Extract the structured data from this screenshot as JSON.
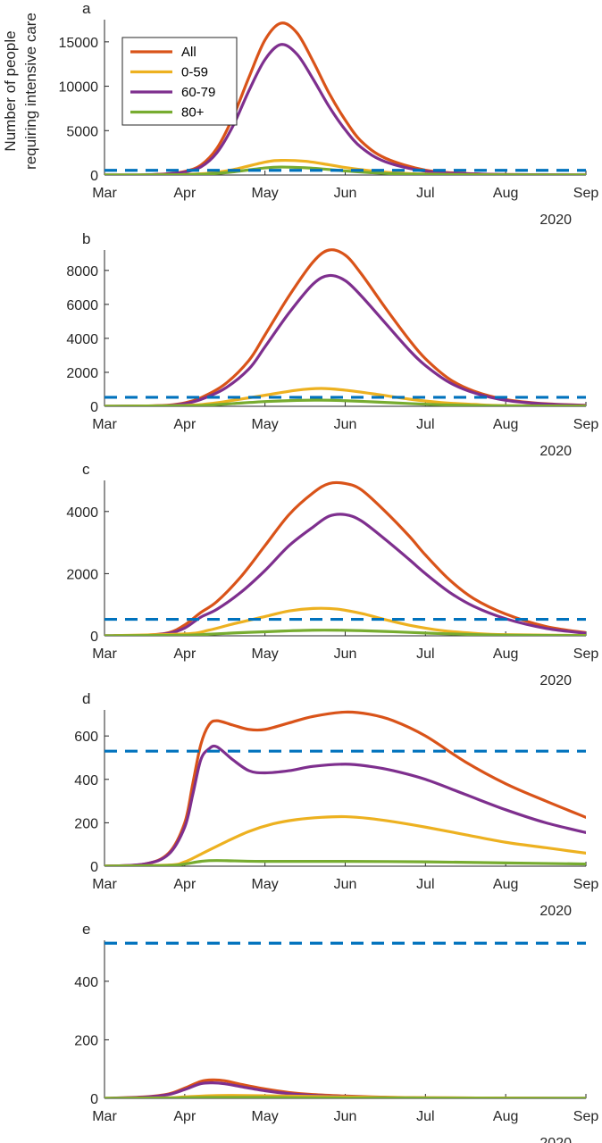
{
  "figure": {
    "ylabel_lines": [
      "Number of people",
      "requiring intensive care"
    ]
  },
  "colors": {
    "All": "#d95319",
    "0-59": "#edb120",
    "60-79": "#7e2f8e",
    "80+": "#77ac30",
    "capacity": "#0072bd"
  },
  "chart_data": [
    {
      "type": "line",
      "panel_label": "a",
      "x_unit": "month",
      "ylim": [
        0,
        17500
      ],
      "yticks": [
        0,
        5000,
        10000,
        15000
      ],
      "xticks": [
        "Mar",
        "Apr",
        "May",
        "Jun",
        "Jul",
        "Aug",
        "Sep"
      ],
      "x_year_label": "2020",
      "capacity": 530,
      "legend": {
        "position": "top-left",
        "entries": [
          "All",
          "0-59",
          "60-79",
          "80+"
        ]
      },
      "series": [
        {
          "name": "All",
          "x": [
            0,
            0.5,
            0.8,
            1.0,
            1.2,
            1.4,
            1.6,
            1.8,
            2.0,
            2.2,
            2.4,
            2.6,
            2.8,
            3.0,
            3.2,
            3.5,
            4.0,
            4.5,
            5.0,
            6.0
          ],
          "y": [
            0,
            20,
            150,
            400,
            1100,
            3000,
            6500,
            11000,
            15200,
            17100,
            16000,
            12800,
            9200,
            6200,
            3800,
            1900,
            550,
            180,
            60,
            10
          ]
        },
        {
          "name": "60-79",
          "x": [
            0,
            0.5,
            0.8,
            1.0,
            1.2,
            1.4,
            1.6,
            1.8,
            2.0,
            2.2,
            2.4,
            2.6,
            2.8,
            3.0,
            3.2,
            3.5,
            4.0,
            4.5,
            5.0,
            6.0
          ],
          "y": [
            0,
            16,
            120,
            330,
            900,
            2500,
            5500,
            9500,
            13000,
            14700,
            13600,
            10800,
            7700,
            5100,
            3100,
            1500,
            430,
            140,
            45,
            8
          ]
        },
        {
          "name": "0-59",
          "x": [
            0,
            0.8,
            1.0,
            1.3,
            1.6,
            2.0,
            2.2,
            2.5,
            2.8,
            3.0,
            3.3,
            3.6,
            4.0,
            4.5,
            5.0,
            6.0
          ],
          "y": [
            0,
            20,
            60,
            200,
            600,
            1450,
            1650,
            1550,
            1150,
            850,
            500,
            260,
            110,
            45,
            15,
            3
          ]
        },
        {
          "name": "80+",
          "x": [
            0,
            0.8,
            1.0,
            1.3,
            1.6,
            2.0,
            2.2,
            2.5,
            2.8,
            3.0,
            3.3,
            3.6,
            4.0,
            4.5,
            5.0,
            6.0
          ],
          "y": [
            0,
            10,
            30,
            120,
            350,
            800,
            900,
            820,
            620,
            460,
            280,
            140,
            60,
            25,
            10,
            2
          ]
        }
      ]
    },
    {
      "type": "line",
      "panel_label": "b",
      "x_unit": "month",
      "ylim": [
        0,
        9200
      ],
      "yticks": [
        0,
        2000,
        4000,
        6000,
        8000
      ],
      "xticks": [
        "Mar",
        "Apr",
        "May",
        "Jun",
        "Jul",
        "Aug",
        "Sep"
      ],
      "x_year_label": "2020",
      "capacity": 530,
      "series": [
        {
          "name": "All",
          "x": [
            0,
            0.5,
            0.8,
            1.0,
            1.2,
            1.5,
            1.8,
            2.0,
            2.3,
            2.6,
            2.8,
            3.0,
            3.2,
            3.5,
            3.8,
            4.0,
            4.3,
            4.6,
            5.0,
            5.5,
            6.0
          ],
          "y": [
            0,
            20,
            70,
            200,
            500,
            1300,
            2700,
            4200,
            6500,
            8500,
            9200,
            8900,
            7800,
            5800,
            3900,
            2800,
            1600,
            900,
            400,
            150,
            60
          ]
        },
        {
          "name": "60-79",
          "x": [
            0,
            0.5,
            0.8,
            1.0,
            1.2,
            1.5,
            1.8,
            2.0,
            2.3,
            2.6,
            2.8,
            3.0,
            3.2,
            3.5,
            3.8,
            4.0,
            4.3,
            4.6,
            5.0,
            5.5,
            6.0
          ],
          "y": [
            0,
            16,
            55,
            160,
            400,
            1050,
            2200,
            3500,
            5500,
            7200,
            7700,
            7400,
            6500,
            4900,
            3300,
            2400,
            1400,
            800,
            350,
            130,
            50
          ]
        },
        {
          "name": "0-59",
          "x": [
            0,
            1.0,
            1.3,
            1.6,
            2.0,
            2.4,
            2.7,
            3.0,
            3.4,
            3.8,
            4.2,
            4.6,
            5.0,
            6.0
          ],
          "y": [
            0,
            50,
            150,
            350,
            650,
            950,
            1050,
            950,
            700,
            420,
            220,
            110,
            40,
            10
          ]
        },
        {
          "name": "80+",
          "x": [
            0,
            1.0,
            1.3,
            1.6,
            2.0,
            2.4,
            2.7,
            3.0,
            3.4,
            3.8,
            4.2,
            4.6,
            5.0,
            6.0
          ],
          "y": [
            0,
            25,
            70,
            160,
            280,
            350,
            360,
            330,
            250,
            160,
            90,
            45,
            20,
            5
          ]
        }
      ]
    },
    {
      "type": "line",
      "panel_label": "c",
      "x_unit": "month",
      "ylim": [
        0,
        5000
      ],
      "yticks": [
        0,
        2000,
        4000
      ],
      "xticks": [
        "Mar",
        "Apr",
        "May",
        "Jun",
        "Jul",
        "Aug",
        "Sep"
      ],
      "x_year_label": "2020",
      "capacity": 530,
      "series": [
        {
          "name": "All",
          "x": [
            0,
            0.5,
            0.8,
            1.0,
            1.2,
            1.4,
            1.7,
            2.0,
            2.3,
            2.6,
            2.8,
            3.0,
            3.2,
            3.5,
            3.8,
            4.0,
            4.3,
            4.6,
            5.0,
            5.5,
            6.0
          ],
          "y": [
            0,
            20,
            100,
            350,
            750,
            1100,
            1900,
            2900,
            3900,
            4600,
            4900,
            4900,
            4700,
            4000,
            3200,
            2600,
            1800,
            1200,
            700,
            300,
            100
          ]
        },
        {
          "name": "60-79",
          "x": [
            0,
            0.5,
            0.8,
            1.0,
            1.2,
            1.4,
            1.7,
            2.0,
            2.3,
            2.6,
            2.8,
            3.0,
            3.2,
            3.5,
            3.8,
            4.0,
            4.3,
            4.6,
            5.0,
            5.5,
            6.0
          ],
          "y": [
            0,
            15,
            80,
            250,
            600,
            850,
            1400,
            2100,
            2900,
            3500,
            3850,
            3900,
            3700,
            3100,
            2450,
            2000,
            1400,
            950,
            550,
            240,
            80
          ]
        },
        {
          "name": "0-59",
          "x": [
            0,
            1.0,
            1.3,
            1.6,
            2.0,
            2.3,
            2.6,
            2.9,
            3.2,
            3.5,
            3.8,
            4.2,
            4.6,
            5.0,
            6.0
          ],
          "y": [
            0,
            60,
            180,
            380,
            620,
            800,
            880,
            860,
            720,
            520,
            340,
            170,
            80,
            35,
            10
          ]
        },
        {
          "name": "80+",
          "x": [
            0,
            1.0,
            1.3,
            1.6,
            2.0,
            2.3,
            2.6,
            2.9,
            3.2,
            3.5,
            3.8,
            4.2,
            4.6,
            5.0,
            6.0
          ],
          "y": [
            0,
            20,
            50,
            90,
            130,
            160,
            180,
            180,
            165,
            140,
            110,
            70,
            40,
            20,
            5
          ]
        }
      ]
    },
    {
      "type": "line",
      "panel_label": "d",
      "x_unit": "month",
      "ylim": [
        0,
        720
      ],
      "yticks": [
        0,
        200,
        400,
        600
      ],
      "xticks": [
        "Mar",
        "Apr",
        "May",
        "Jun",
        "Jul",
        "Aug",
        "Sep"
      ],
      "x_year_label": "2020",
      "capacity": 530,
      "series": [
        {
          "name": "All",
          "x": [
            0,
            0.5,
            0.8,
            1.0,
            1.1,
            1.2,
            1.3,
            1.4,
            1.6,
            1.8,
            2.0,
            2.3,
            2.6,
            3.0,
            3.3,
            3.6,
            4.0,
            4.5,
            5.0,
            5.5,
            6.0
          ],
          "y": [
            0,
            10,
            60,
            200,
            380,
            560,
            650,
            670,
            650,
            630,
            630,
            660,
            690,
            710,
            700,
            670,
            600,
            480,
            380,
            300,
            225
          ]
        },
        {
          "name": "60-79",
          "x": [
            0,
            0.5,
            0.8,
            1.0,
            1.1,
            1.2,
            1.3,
            1.4,
            1.6,
            1.8,
            2.0,
            2.3,
            2.6,
            3.0,
            3.3,
            3.6,
            4.0,
            4.5,
            5.0,
            5.5,
            6.0
          ],
          "y": [
            0,
            10,
            55,
            180,
            330,
            490,
            540,
            550,
            490,
            440,
            430,
            440,
            460,
            470,
            460,
            440,
            400,
            330,
            260,
            200,
            155
          ]
        },
        {
          "name": "0-59",
          "x": [
            0,
            0.8,
            1.0,
            1.2,
            1.5,
            1.8,
            2.1,
            2.4,
            2.7,
            3.0,
            3.3,
            3.6,
            4.0,
            4.5,
            5.0,
            5.5,
            6.0
          ],
          "y": [
            0,
            5,
            20,
            55,
            110,
            160,
            195,
            215,
            225,
            228,
            220,
            205,
            180,
            145,
            110,
            85,
            60
          ]
        },
        {
          "name": "80+",
          "x": [
            0,
            0.8,
            1.0,
            1.2,
            1.4,
            2.0,
            3.0,
            4.0,
            5.0,
            6.0
          ],
          "y": [
            0,
            3,
            10,
            22,
            26,
            22,
            22,
            20,
            15,
            10
          ]
        }
      ]
    },
    {
      "type": "line",
      "panel_label": "e",
      "x_unit": "month",
      "ylim": [
        0,
        540
      ],
      "yticks": [
        0,
        200,
        400
      ],
      "xticks": [
        "Mar",
        "Apr",
        "May",
        "Jun",
        "Jul",
        "Aug",
        "Sep"
      ],
      "x_year_label": "2020",
      "capacity": 530,
      "series": [
        {
          "name": "All",
          "x": [
            0,
            0.5,
            0.8,
            1.0,
            1.2,
            1.35,
            1.5,
            1.7,
            2.0,
            2.3,
            2.6,
            3.0,
            3.5,
            4.0,
            5.0,
            6.0
          ],
          "y": [
            0,
            5,
            15,
            35,
            58,
            63,
            60,
            48,
            32,
            20,
            13,
            8,
            4,
            2,
            1,
            0
          ]
        },
        {
          "name": "60-79",
          "x": [
            0,
            0.5,
            0.8,
            1.0,
            1.2,
            1.35,
            1.5,
            1.7,
            2.0,
            2.3,
            2.6,
            3.0,
            3.5,
            4.0,
            5.0,
            6.0
          ],
          "y": [
            0,
            4,
            13,
            30,
            50,
            53,
            50,
            40,
            26,
            16,
            10,
            6,
            3,
            1,
            0,
            0
          ]
        },
        {
          "name": "0-59",
          "x": [
            0,
            0.8,
            1.0,
            1.3,
            1.6,
            2.0,
            2.5,
            3.0,
            3.5,
            4.0,
            5.0,
            6.0
          ],
          "y": [
            0,
            2,
            5,
            9,
            10,
            9,
            7,
            5,
            3,
            2,
            1,
            0
          ]
        },
        {
          "name": "80+",
          "x": [
            0,
            0.8,
            1.0,
            1.3,
            1.6,
            2.0,
            2.5,
            3.0,
            4.0,
            5.0,
            6.0
          ],
          "y": [
            0,
            1,
            2,
            3,
            3,
            3,
            2,
            1,
            1,
            0,
            0
          ]
        }
      ]
    }
  ]
}
